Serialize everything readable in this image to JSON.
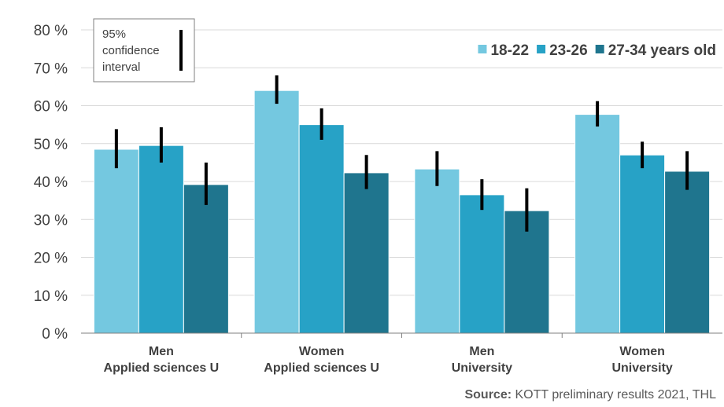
{
  "chart_data": {
    "type": "bar",
    "categories": [
      [
        "Men",
        "Applied sciences U"
      ],
      [
        "Women",
        "Applied sciences U"
      ],
      [
        "Men",
        "University"
      ],
      [
        "Women",
        "University"
      ]
    ],
    "series": [
      {
        "name": "18-22",
        "color": "#74c8e0",
        "values": [
          48.5,
          64.0,
          43.3,
          57.7
        ],
        "ci": [
          [
            43.5,
            53.8
          ],
          [
            60.5,
            68.0
          ],
          [
            38.8,
            48.0
          ],
          [
            54.5,
            61.2
          ]
        ]
      },
      {
        "name": "23-26",
        "color": "#27a2c6",
        "values": [
          49.5,
          55.0,
          36.5,
          47.0
        ],
        "ci": [
          [
            45.0,
            54.3
          ],
          [
            51.0,
            59.3
          ],
          [
            32.5,
            40.6
          ],
          [
            43.5,
            50.5
          ]
        ]
      },
      {
        "name": "27-34 years old",
        "color": "#1f758e",
        "values": [
          39.2,
          42.3,
          32.3,
          42.7
        ],
        "ci": [
          [
            33.8,
            45.0
          ],
          [
            38.0,
            47.0
          ],
          [
            26.8,
            38.2
          ],
          [
            37.8,
            48.0
          ]
        ]
      }
    ],
    "ylim": [
      0,
      80
    ],
    "yticks": [
      "0 %",
      "10 %",
      "20 %",
      "30 %",
      "40 %",
      "50 %",
      "60 %",
      "70 %",
      "80 %"
    ],
    "grid": true,
    "legend_position": "top-right",
    "ci_legend": [
      "95%",
      "confidence",
      "interval"
    ],
    "source_bold": "Source:",
    "source_text": " KOTT preliminary results 2021, THL"
  }
}
